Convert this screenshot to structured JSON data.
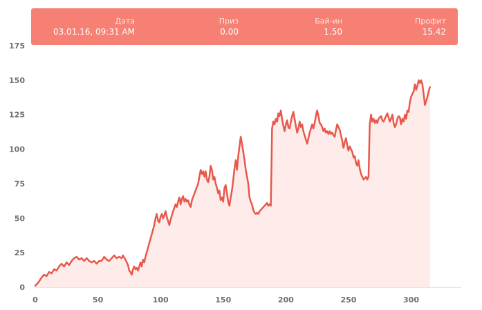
{
  "tooltip": {
    "date_label": "Дата",
    "date_value": "03.01.16, 09:31 AM",
    "prize_label": "Приз",
    "prize_value": "0.00",
    "buyin_label": "Бай-ин",
    "buyin_value": "1.50",
    "profit_label": "Профит",
    "profit_value": "15.42"
  },
  "colors": {
    "line": "#e8584a",
    "area": "#fdecea",
    "tooltip_bg": "#f58073"
  },
  "chart_data": {
    "type": "area",
    "title": "",
    "xlabel": "",
    "ylabel": "",
    "xlim": [
      0,
      340
    ],
    "ylim": [
      0,
      175
    ],
    "xticks": [
      0,
      50,
      100,
      150,
      200,
      250,
      300
    ],
    "yticks": [
      0,
      25,
      50,
      75,
      100,
      125,
      150,
      175
    ],
    "grid": false,
    "series": [
      {
        "name": "",
        "points": [
          [
            0,
            1
          ],
          [
            3,
            4
          ],
          [
            5,
            7
          ],
          [
            7,
            9
          ],
          [
            9,
            8
          ],
          [
            11,
            11
          ],
          [
            13,
            10
          ],
          [
            15,
            13
          ],
          [
            17,
            12
          ],
          [
            19,
            15
          ],
          [
            21,
            17
          ],
          [
            23,
            15
          ],
          [
            25,
            18
          ],
          [
            27,
            16
          ],
          [
            29,
            19
          ],
          [
            31,
            21
          ],
          [
            33,
            22
          ],
          [
            35,
            20
          ],
          [
            37,
            21
          ],
          [
            39,
            19
          ],
          [
            41,
            21
          ],
          [
            43,
            19
          ],
          [
            45,
            18
          ],
          [
            47,
            19
          ],
          [
            49,
            17
          ],
          [
            51,
            19
          ],
          [
            53,
            19
          ],
          [
            55,
            22
          ],
          [
            57,
            20
          ],
          [
            59,
            19
          ],
          [
            61,
            21
          ],
          [
            63,
            23
          ],
          [
            65,
            21
          ],
          [
            67,
            22
          ],
          [
            69,
            21
          ],
          [
            70,
            23
          ],
          [
            72,
            20
          ],
          [
            74,
            16
          ],
          [
            75,
            12
          ],
          [
            76,
            11
          ],
          [
            77,
            9
          ],
          [
            78,
            13
          ],
          [
            79,
            15
          ],
          [
            80,
            13
          ],
          [
            81,
            14
          ],
          [
            82,
            12
          ],
          [
            84,
            18
          ],
          [
            85,
            15
          ],
          [
            86,
            20
          ],
          [
            87,
            18
          ],
          [
            88,
            22
          ],
          [
            95,
            45
          ],
          [
            96,
            50
          ],
          [
            97,
            53
          ],
          [
            98,
            48
          ],
          [
            99,
            47
          ],
          [
            100,
            51
          ],
          [
            101,
            53
          ],
          [
            102,
            50
          ],
          [
            103,
            52
          ],
          [
            104,
            55
          ],
          [
            105,
            51
          ],
          [
            106,
            48
          ],
          [
            107,
            45
          ],
          [
            108,
            49
          ],
          [
            110,
            55
          ],
          [
            112,
            60
          ],
          [
            113,
            58
          ],
          [
            114,
            62
          ],
          [
            115,
            65
          ],
          [
            116,
            60
          ],
          [
            117,
            64
          ],
          [
            118,
            66
          ],
          [
            119,
            62
          ],
          [
            120,
            64
          ],
          [
            121,
            62
          ],
          [
            122,
            63
          ],
          [
            123,
            60
          ],
          [
            124,
            58
          ],
          [
            125,
            63
          ],
          [
            130,
            75
          ],
          [
            131,
            80
          ],
          [
            132,
            85
          ],
          [
            133,
            82
          ],
          [
            134,
            84
          ],
          [
            135,
            80
          ],
          [
            136,
            84
          ],
          [
            137,
            78
          ],
          [
            138,
            76
          ],
          [
            139,
            80
          ],
          [
            140,
            88
          ],
          [
            141,
            85
          ],
          [
            142,
            78
          ],
          [
            143,
            80
          ],
          [
            144,
            75
          ],
          [
            145,
            72
          ],
          [
            146,
            68
          ],
          [
            147,
            70
          ],
          [
            148,
            63
          ],
          [
            149,
            65
          ],
          [
            150,
            62
          ],
          [
            151,
            72
          ],
          [
            152,
            74
          ],
          [
            153,
            68
          ],
          [
            154,
            62
          ],
          [
            155,
            59
          ],
          [
            156,
            65
          ],
          [
            157,
            70
          ],
          [
            158,
            78
          ],
          [
            159,
            86
          ],
          [
            160,
            92
          ],
          [
            161,
            85
          ],
          [
            162,
            95
          ],
          [
            163,
            102
          ],
          [
            164,
            109
          ],
          [
            165,
            104
          ],
          [
            166,
            98
          ],
          [
            167,
            92
          ],
          [
            168,
            85
          ],
          [
            169,
            80
          ],
          [
            170,
            75
          ],
          [
            171,
            65
          ],
          [
            172,
            62
          ],
          [
            173,
            60
          ],
          [
            174,
            56
          ],
          [
            175,
            54
          ],
          [
            176,
            53
          ],
          [
            177,
            54
          ],
          [
            178,
            53
          ],
          [
            179,
            55
          ],
          [
            180,
            56
          ],
          [
            181,
            57
          ],
          [
            182,
            58
          ],
          [
            183,
            59
          ],
          [
            184,
            60
          ],
          [
            185,
            61
          ],
          [
            186,
            59
          ],
          [
            187,
            60
          ],
          [
            188,
            59
          ],
          [
            188.5,
            85
          ],
          [
            189,
            115
          ],
          [
            190,
            120
          ],
          [
            191,
            118
          ],
          [
            192,
            122
          ],
          [
            193,
            120
          ],
          [
            194,
            126
          ],
          [
            195,
            124
          ],
          [
            196,
            128
          ],
          [
            197,
            122
          ],
          [
            198,
            117
          ],
          [
            199,
            113
          ],
          [
            200,
            118
          ],
          [
            201,
            121
          ],
          [
            202,
            116
          ],
          [
            203,
            115
          ],
          [
            204,
            120
          ],
          [
            205,
            124
          ],
          [
            206,
            127
          ],
          [
            207,
            122
          ],
          [
            208,
            117
          ],
          [
            209,
            112
          ],
          [
            210,
            115
          ],
          [
            211,
            120
          ],
          [
            212,
            116
          ],
          [
            213,
            118
          ],
          [
            214,
            113
          ],
          [
            215,
            110
          ],
          [
            216,
            107
          ],
          [
            217,
            104
          ],
          [
            218,
            108
          ],
          [
            219,
            112
          ],
          [
            220,
            115
          ],
          [
            221,
            118
          ],
          [
            222,
            115
          ],
          [
            223,
            119
          ],
          [
            224,
            124
          ],
          [
            225,
            128
          ],
          [
            226,
            124
          ],
          [
            227,
            119
          ],
          [
            228,
            118
          ],
          [
            229,
            116
          ],
          [
            230,
            113
          ],
          [
            231,
            115
          ],
          [
            232,
            112
          ],
          [
            233,
            113
          ],
          [
            234,
            111
          ],
          [
            235,
            113
          ],
          [
            236,
            111
          ],
          [
            237,
            112
          ],
          [
            238,
            110
          ],
          [
            239,
            109
          ],
          [
            240,
            114
          ],
          [
            241,
            118
          ],
          [
            242,
            116
          ],
          [
            243,
            114
          ],
          [
            244,
            110
          ],
          [
            245,
            106
          ],
          [
            246,
            101
          ],
          [
            247,
            105
          ],
          [
            248,
            108
          ],
          [
            249,
            103
          ],
          [
            250,
            99
          ],
          [
            251,
            102
          ],
          [
            252,
            100
          ],
          [
            253,
            98
          ],
          [
            254,
            94
          ],
          [
            255,
            95
          ],
          [
            256,
            90
          ],
          [
            257,
            88
          ],
          [
            258,
            92
          ],
          [
            259,
            86
          ],
          [
            260,
            82
          ],
          [
            261,
            80
          ],
          [
            262,
            78
          ],
          [
            263,
            79
          ],
          [
            264,
            80
          ],
          [
            265,
            78
          ],
          [
            266,
            80
          ],
          [
            267,
            118
          ],
          [
            268,
            125
          ],
          [
            269,
            120
          ],
          [
            270,
            122
          ],
          [
            271,
            119
          ],
          [
            272,
            121
          ],
          [
            273,
            119
          ],
          [
            274,
            122
          ],
          [
            275,
            123
          ],
          [
            276,
            124
          ],
          [
            277,
            121
          ],
          [
            278,
            120
          ],
          [
            279,
            122
          ],
          [
            280,
            124
          ],
          [
            281,
            126
          ],
          [
            282,
            123
          ],
          [
            283,
            120
          ],
          [
            284,
            122
          ],
          [
            285,
            125
          ],
          [
            286,
            119
          ],
          [
            287,
            116
          ],
          [
            288,
            118
          ],
          [
            289,
            122
          ],
          [
            290,
            124
          ],
          [
            291,
            123
          ],
          [
            292,
            118
          ],
          [
            293,
            122
          ],
          [
            294,
            120
          ],
          [
            295,
            125
          ],
          [
            296,
            122
          ],
          [
            297,
            128
          ],
          [
            298,
            127
          ],
          [
            299,
            134
          ],
          [
            300,
            138
          ],
          [
            301,
            140
          ],
          [
            302,
            142
          ],
          [
            303,
            147
          ],
          [
            304,
            143
          ],
          [
            305,
            146
          ],
          [
            306,
            150
          ],
          [
            307,
            148
          ],
          [
            308,
            150
          ],
          [
            309,
            147
          ],
          [
            310,
            140
          ],
          [
            311,
            132
          ],
          [
            312,
            135
          ],
          [
            313,
            138
          ],
          [
            314,
            142
          ],
          [
            315,
            145
          ]
        ]
      }
    ]
  }
}
